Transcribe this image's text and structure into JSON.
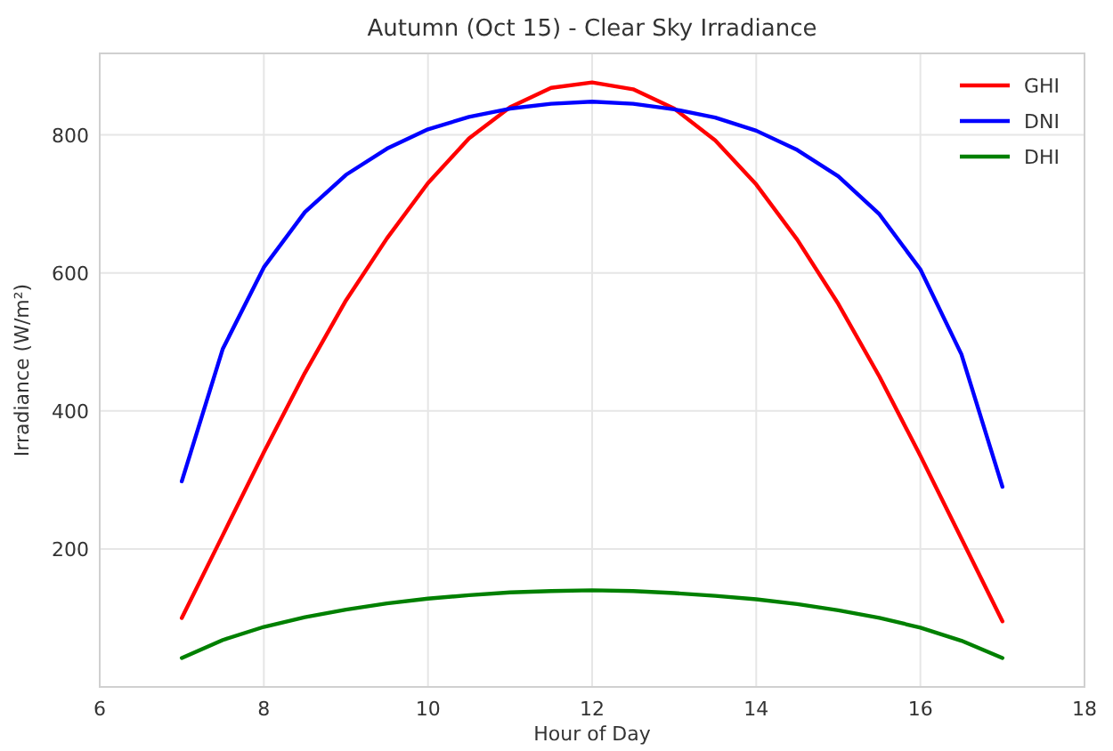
{
  "chart_data": {
    "type": "line",
    "title": "Autumn (Oct 15) - Clear Sky Irradiance",
    "xlabel": "Hour of Day",
    "ylabel": "Irradiance (W/m²)",
    "x": [
      7,
      7.5,
      8,
      8.5,
      9,
      9.5,
      10,
      10.5,
      11,
      11.5,
      12,
      12.5,
      13,
      13.5,
      14,
      14.5,
      15,
      15.5,
      16,
      16.5,
      17
    ],
    "series": [
      {
        "name": "GHI",
        "color": "#ff0000",
        "values": [
          100,
          220,
          340,
          455,
          560,
          650,
          730,
          795,
          840,
          868,
          876,
          866,
          838,
          792,
          728,
          648,
          555,
          450,
          335,
          215,
          95
        ]
      },
      {
        "name": "DNI",
        "color": "#0000ff",
        "values": [
          298,
          490,
          608,
          688,
          742,
          780,
          808,
          826,
          838,
          845,
          848,
          845,
          837,
          825,
          806,
          778,
          740,
          685,
          605,
          482,
          290
        ]
      },
      {
        "name": "DHI",
        "color": "#008000",
        "values": [
          42,
          68,
          87,
          101,
          112,
          121,
          128,
          133,
          137,
          139,
          140,
          139,
          136,
          132,
          127,
          120,
          111,
          100,
          86,
          67,
          42
        ]
      }
    ],
    "xlim": [
      6,
      18
    ],
    "xticks": [
      6,
      8,
      10,
      12,
      14,
      16,
      18
    ],
    "ylim": [
      0,
      918
    ],
    "yticks": [
      200,
      400,
      600,
      800
    ],
    "grid": true,
    "legend": "top right",
    "marker": "none",
    "line_style": "solid"
  }
}
